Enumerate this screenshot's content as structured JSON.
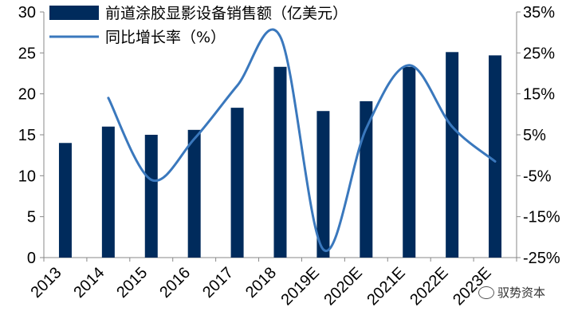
{
  "chart_data": {
    "type": "bar+line",
    "categories": [
      "2013",
      "2014",
      "2015",
      "2016",
      "2017",
      "2018",
      "2019E",
      "2020E",
      "2021E",
      "2022E",
      "2023E"
    ],
    "series": [
      {
        "name": "前道涂胶显影设备销售额（亿美元）",
        "type": "bar",
        "axis": "left",
        "color": "#002B5C",
        "values": [
          14.0,
          16.0,
          15.0,
          15.6,
          18.3,
          23.3,
          17.9,
          19.1,
          23.3,
          25.1,
          24.7
        ]
      },
      {
        "name": "同比增长率（%）",
        "type": "line",
        "axis": "right",
        "color": "#3A78BD",
        "values": [
          null,
          14.0,
          -6.0,
          4.0,
          17.0,
          29.0,
          -23.0,
          6.5,
          22.0,
          7.0,
          -1.5
        ]
      }
    ],
    "y_left": {
      "min": 0,
      "max": 30,
      "ticks": [
        "0",
        "5",
        "10",
        "15",
        "20",
        "25",
        "30"
      ]
    },
    "y_right": {
      "min": -25,
      "max": 35,
      "ticks": [
        "-25%",
        "-15%",
        "-5%",
        "5%",
        "15%",
        "25%",
        "35%"
      ]
    },
    "legend_position": "top-left"
  },
  "watermark": {
    "text": "驭势资本"
  }
}
